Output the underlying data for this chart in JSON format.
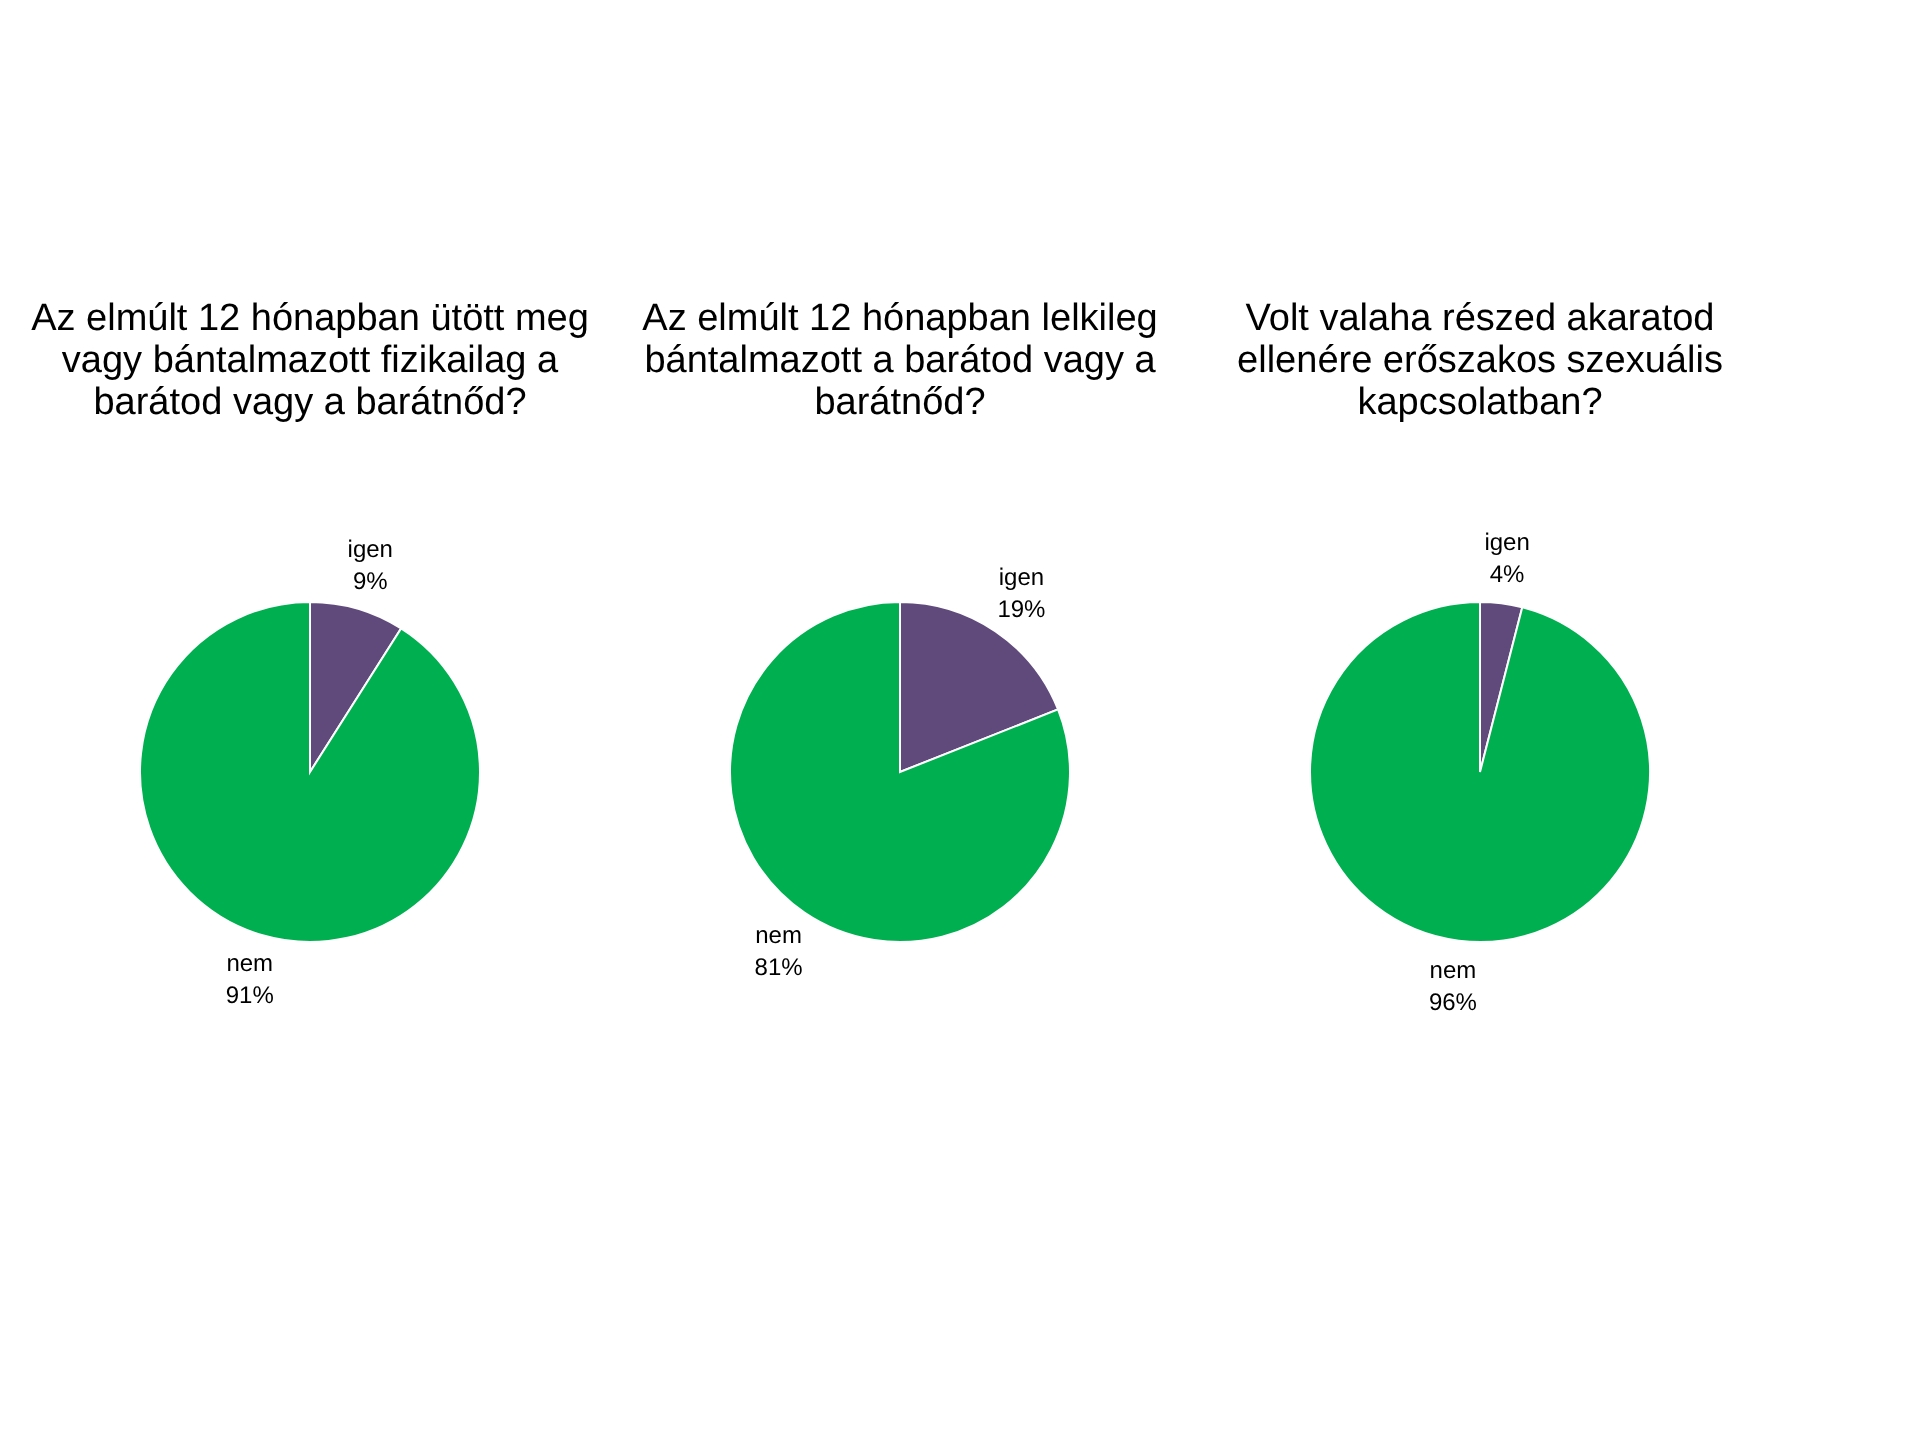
{
  "chart_data": [
    {
      "type": "pie",
      "title": "Az elmúlt 12 hónapban ütött meg vagy bántalmazott fizikailag a barátod vagy a barátnőd?",
      "categories": [
        "igen",
        "nem"
      ],
      "values": [
        9,
        91
      ],
      "value_labels": [
        "9%",
        "91%"
      ],
      "colors": [
        "#604a7b",
        "#00b050"
      ]
    },
    {
      "type": "pie",
      "title": "Az elmúlt 12 hónapban lelkileg bántalmazott a barátod vagy a barátnőd?",
      "categories": [
        "igen",
        "nem"
      ],
      "values": [
        19,
        81
      ],
      "value_labels": [
        "19%",
        "81%"
      ],
      "colors": [
        "#604a7b",
        "#00b050"
      ]
    },
    {
      "type": "pie",
      "title": "Volt valaha részed akaratod ellenére erőszakos szexuális kapcsolatban?",
      "categories": [
        "igen",
        "nem"
      ],
      "values": [
        4,
        96
      ],
      "value_labels": [
        "4%",
        "96%"
      ],
      "colors": [
        "#604a7b",
        "#00b050"
      ]
    }
  ]
}
